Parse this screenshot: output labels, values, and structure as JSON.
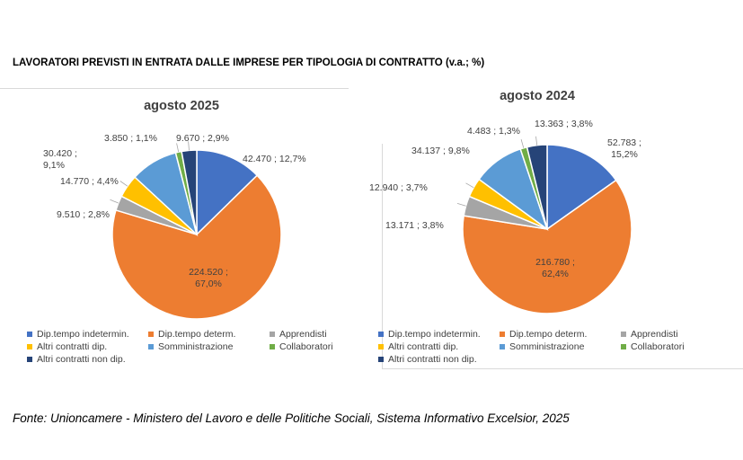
{
  "title": "LAVORATORI PREVISTI IN ENTRATA DALLE IMPRESE PER TIPOLOGIA DI CONTRATTO (v.a.; %)",
  "footer": "Fonte: Unioncamere - Ministero del Lavoro e delle Politiche Sociali, Sistema Informativo Excelsior, 2025",
  "colors": {
    "Dip.tempo indetermin.": "#4472c4",
    "Dip.tempo determ.": "#ed7d31",
    "Apprendisti": "#a5a5a5",
    "Altri contratti dip.": "#ffc000",
    "Somministrazione": "#5b9bd5",
    "Collaboratori": "#70ad47",
    "Altri contratti non dip.": "#264478"
  },
  "chart_data": [
    {
      "type": "pie",
      "title": "agosto 2025",
      "labels": [
        "Dip.tempo indetermin.",
        "Dip.tempo determ.",
        "Apprendisti",
        "Altri contratti dip.",
        "Somministrazione",
        "Collaboratori",
        "Altri contratti non dip."
      ],
      "values": [
        42470,
        224520,
        9510,
        14770,
        30420,
        3850,
        9670
      ],
      "data_labels": [
        "42.470 ; 12,7%",
        "224.520 ;|67,0%",
        "9.510 ; 2,8%",
        "14.770 ; 4,4%",
        "30.420 ;|9,1%",
        "3.850 ; 1,1%",
        "9.670 ; 2,9%"
      ],
      "legend_labels": [
        "Dip.tempo indetermin.",
        "Dip.tempo determ.",
        "Apprendisti",
        "Altri contratti dip.",
        "Somministrazione",
        "Collaboratori",
        "Altri contratti non dip."
      ],
      "legend_position": "bottom"
    },
    {
      "type": "pie",
      "title": "agosto 2024",
      "labels": [
        "Dip.tempo indetermin.",
        "Dip.tempo determ.",
        "Apprendisti",
        "Altri contratti dip.",
        "Somministrazione",
        "Collaboratori",
        "Altri contratti non dip."
      ],
      "values": [
        52783,
        216780,
        13171,
        12940,
        34137,
        4483,
        13363
      ],
      "data_labels": [
        "52.783 ;|15,2%",
        "216.780 ;|62,4%",
        "13.171 ; 3,8%",
        "12.940 ; 3,7%",
        "34.137 ; 9,8%",
        "4.483 ; 1,3%",
        "13.363 ; 3,8%"
      ],
      "legend_labels": [
        "Dip.tempo indetermin.",
        "Dip.tempo determ.",
        "Apprendisti",
        "Altri contratti dip.",
        "Somministrazione",
        "Collaboratori",
        "Altri contratti non dip."
      ],
      "legend_position": "bottom"
    }
  ]
}
